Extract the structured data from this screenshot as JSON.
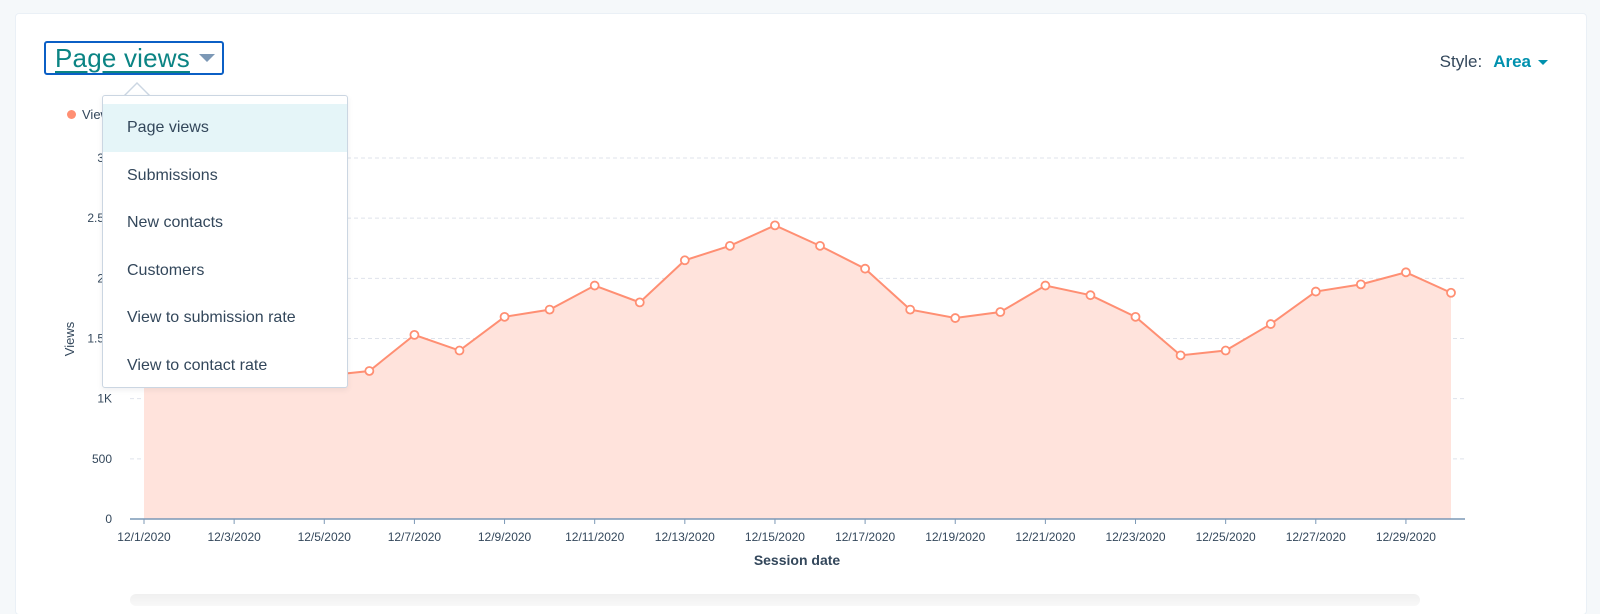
{
  "header": {
    "metric_selected": "Page views",
    "style_label": "Style:",
    "style_value": "Area"
  },
  "legend": {
    "series_label": "Views"
  },
  "dropdown": {
    "items": [
      "Page views",
      "Submissions",
      "New contacts",
      "Customers",
      "View to submission rate",
      "View to contact rate"
    ],
    "selected_index": 0
  },
  "colors": {
    "accent": "#0b8484",
    "link": "#0091ae",
    "focus_border": "#0b5fc5",
    "series_line": "#ff8f73",
    "series_fill": "#ffe3dc"
  },
  "chart_data": {
    "type": "area",
    "xlabel": "Session date",
    "ylabel": "Views",
    "ylim": [
      0,
      3000
    ],
    "yticks": [
      0,
      500,
      1000,
      1500,
      2000,
      2500,
      3000
    ],
    "ytick_labels": [
      "0",
      "500",
      "1K",
      "1.5K",
      "2K",
      "2.5K",
      "3K"
    ],
    "grid": true,
    "x": [
      "12/1/2020",
      "12/2/2020",
      "12/3/2020",
      "12/4/2020",
      "12/5/2020",
      "12/6/2020",
      "12/7/2020",
      "12/8/2020",
      "12/9/2020",
      "12/10/2020",
      "12/11/2020",
      "12/12/2020",
      "12/13/2020",
      "12/14/2020",
      "12/15/2020",
      "12/16/2020",
      "12/17/2020",
      "12/18/2020",
      "12/19/2020",
      "12/20/2020",
      "12/21/2020",
      "12/22/2020",
      "12/23/2020",
      "12/24/2020",
      "12/25/2020",
      "12/26/2020",
      "12/27/2020",
      "12/28/2020",
      "12/29/2020",
      "12/30/2020"
    ],
    "xtick_labels": [
      "12/1/2020",
      "12/3/2020",
      "12/5/2020",
      "12/7/2020",
      "12/9/2020",
      "12/11/2020",
      "12/13/2020",
      "12/15/2020",
      "12/17/2020",
      "12/19/2020",
      "12/21/2020",
      "12/23/2020",
      "12/25/2020",
      "12/27/2020",
      "12/29/2020"
    ],
    "series": [
      {
        "name": "Views",
        "values": [
          1150,
          1180,
          1160,
          1170,
          1190,
          1230,
          1530,
          1400,
          1680,
          1740,
          1940,
          1800,
          2150,
          2270,
          2440,
          2270,
          2080,
          1740,
          1670,
          1720,
          1940,
          1860,
          1680,
          1360,
          1400,
          1620,
          1890,
          1950,
          2050,
          1880
        ]
      }
    ]
  }
}
